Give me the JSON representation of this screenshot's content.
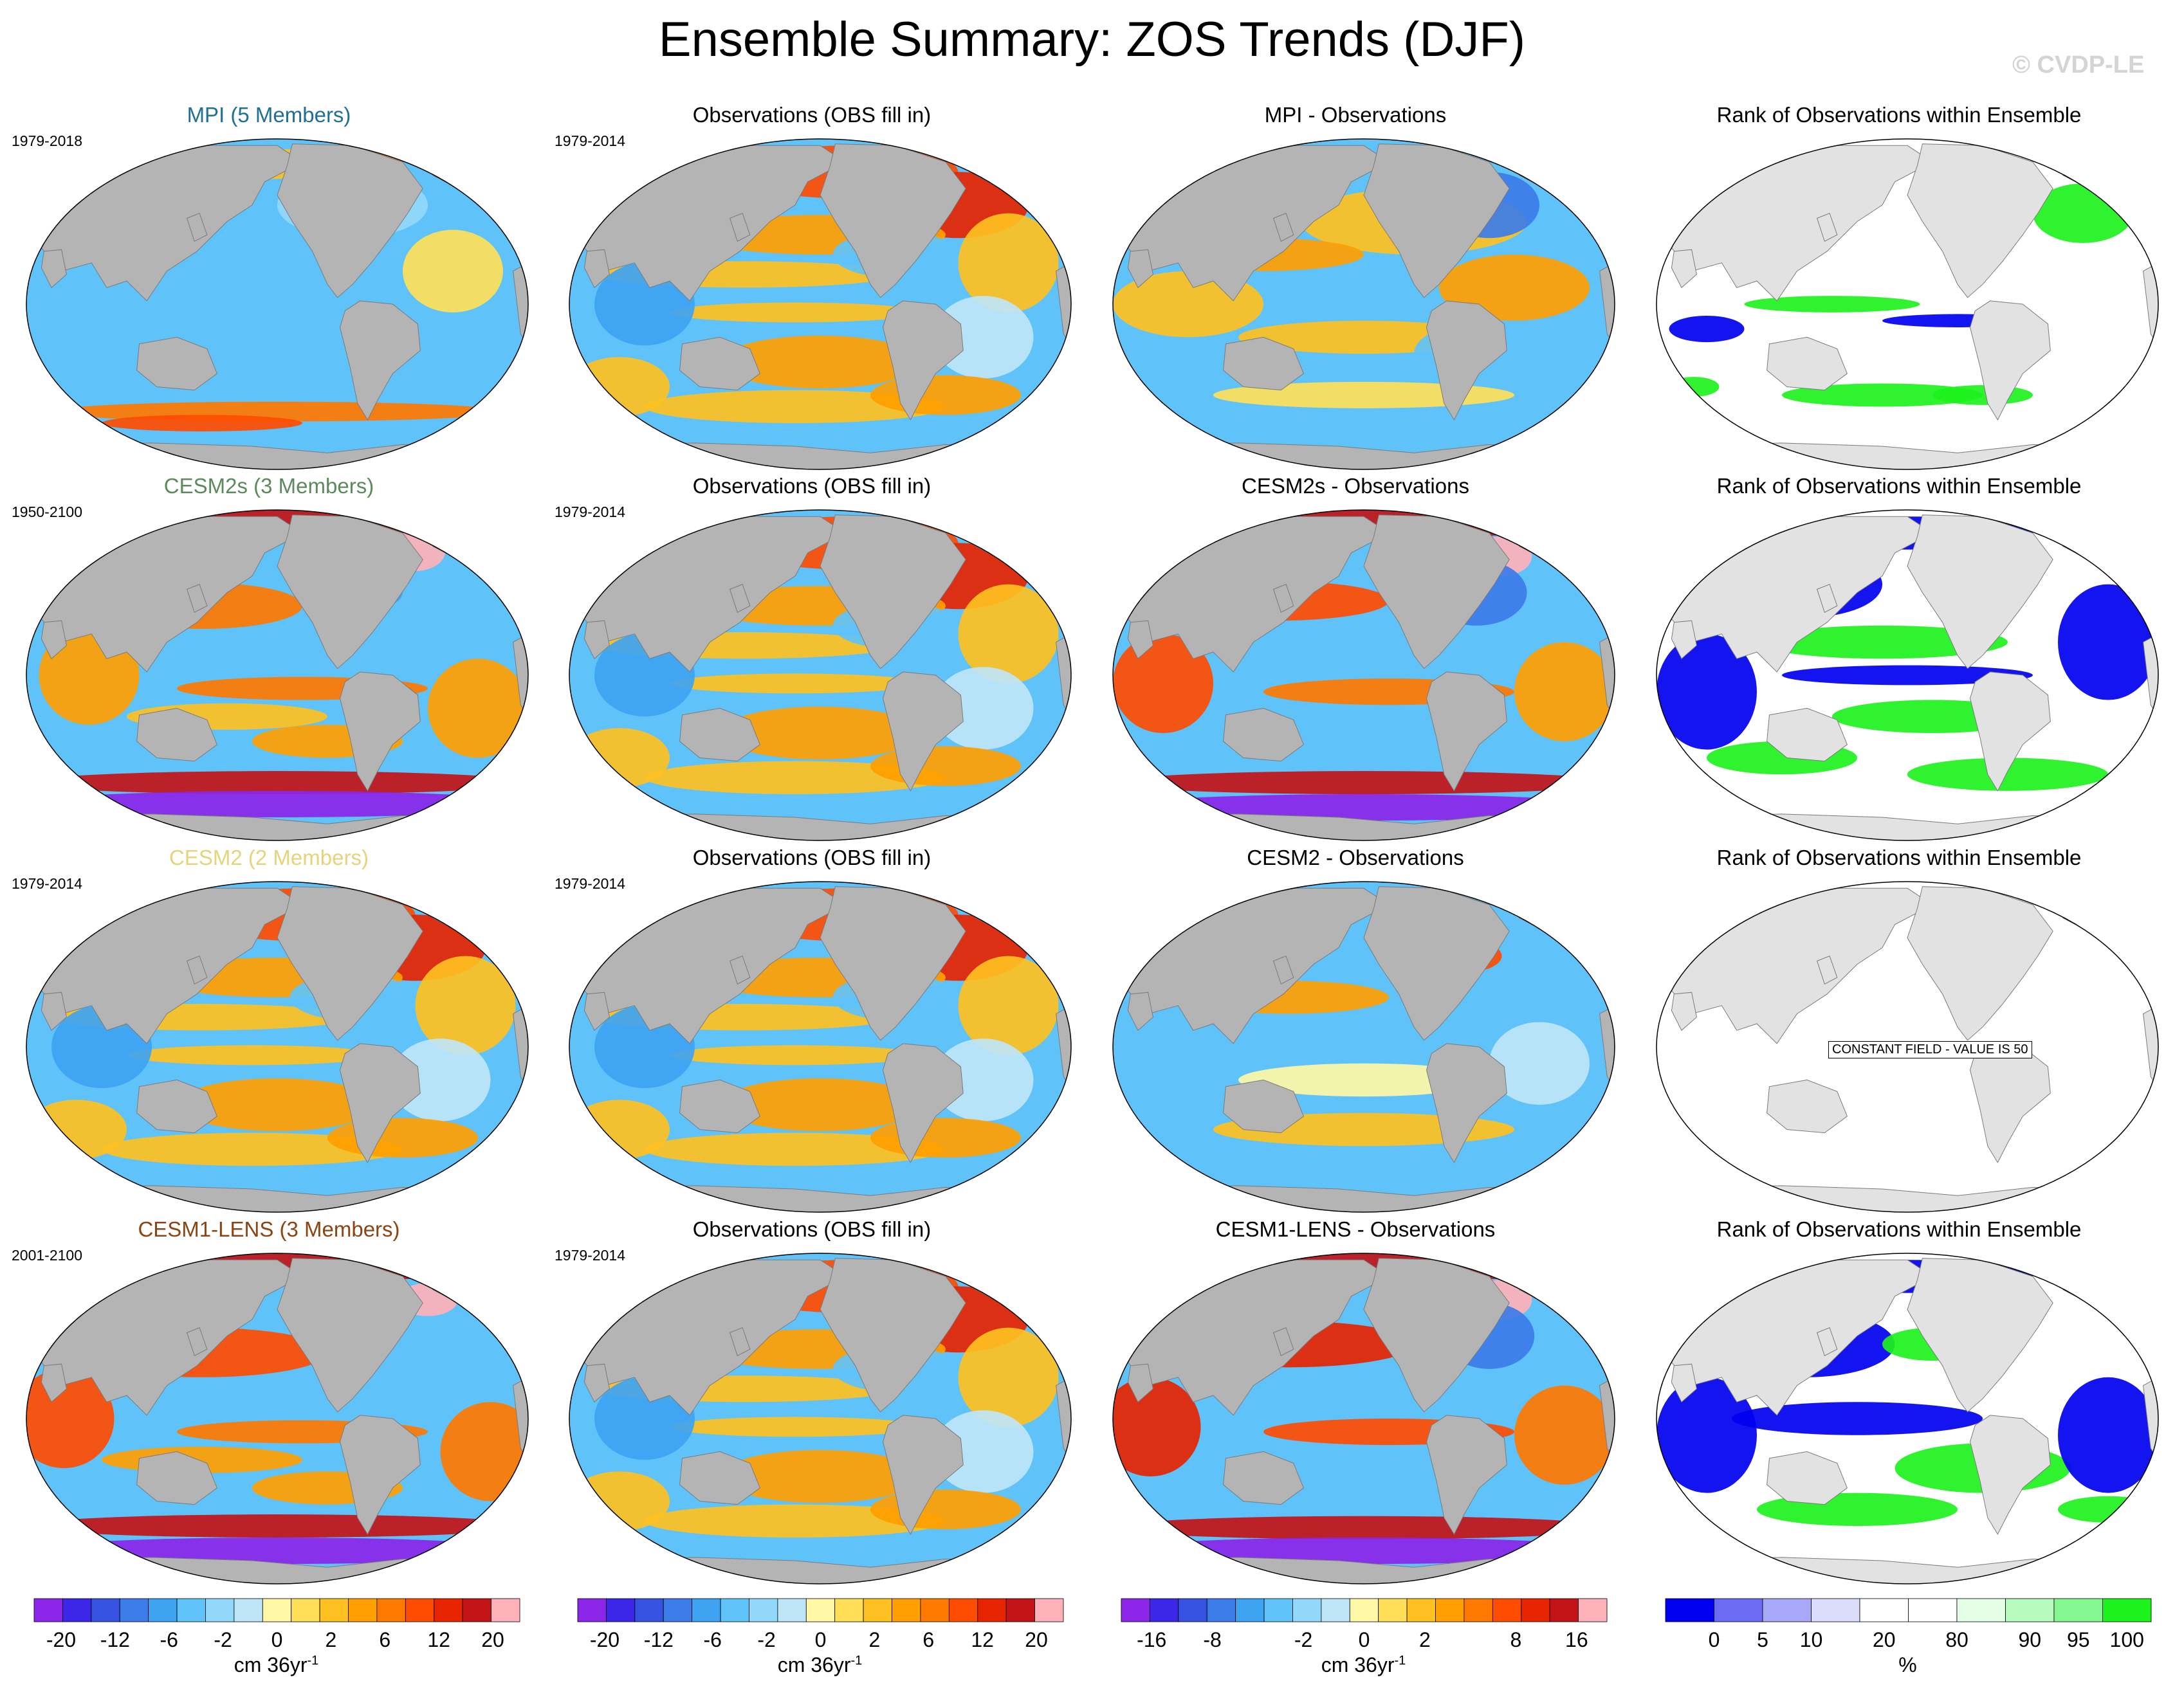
{
  "title": "Ensemble Summary: ZOS Trends (DJF)",
  "watermark": "© CVDP-LE",
  "colors": {
    "land": "#b4b4b4",
    "ice_land": "#e2e2e2",
    "diverging": [
      "#8b25e8",
      "#3c27e8",
      "#3552e0",
      "#3c7ce8",
      "#3ea4f2",
      "#5fc3fa",
      "#92d8fa",
      "#bfe6f7",
      "#fff8a6",
      "#ffdf58",
      "#ffc121",
      "#ffa000",
      "#ff7800",
      "#ff4c00",
      "#e62400",
      "#c21416",
      "#ffb1b9"
    ],
    "rank": [
      "#0000f0",
      "#6b6bf5",
      "#a8a8f8",
      "#dcdcfb",
      "#ffffff",
      "#ffffff",
      "#e3ffe6",
      "#b8fbbe",
      "#86f690",
      "#1cf21c"
    ]
  },
  "rows": [
    {
      "model": "MPI (5 Members)",
      "model_color": "#1f6f96",
      "period": "1979-2018",
      "obs_title": "Observations (OBS fill in)",
      "obs_period": "1979-2014",
      "diff_title": "MPI - Observations",
      "rank_title": "Rank of Observations within Ensemble",
      "model_style": "mpi",
      "diff_style": "mpi_diff",
      "rank_style": "rank_mixed"
    },
    {
      "model": "CESM2s (3 Members)",
      "model_color": "#5c8a5c",
      "period": "1950-2100",
      "obs_title": "Observations (OBS fill in)",
      "obs_period": "1979-2014",
      "diff_title": "CESM2s - Observations",
      "rank_title": "Rank of Observations within Ensemble",
      "model_style": "future",
      "diff_style": "future_diff",
      "rank_style": "rank_blue"
    },
    {
      "model": "CESM2 (2 Members)",
      "model_color": "#e6d37a",
      "period": "1979-2014",
      "obs_title": "Observations (OBS fill in)",
      "obs_period": "1979-2014",
      "diff_title": "CESM2 - Observations",
      "rank_title": "Rank of Observations within Ensemble",
      "model_style": "obs",
      "diff_style": "small_diff",
      "rank_style": "rank_constant",
      "constant_label": "CONSTANT FIELD - VALUE IS 50"
    },
    {
      "model": "CESM1-LENS (3 Members)",
      "model_color": "#8b4513",
      "period": "2001-2100",
      "obs_title": "Observations (OBS fill in)",
      "obs_period": "1979-2014",
      "diff_title": "CESM1-LENS - Observations",
      "rank_title": "Rank of Observations within Ensemble",
      "model_style": "future_strong",
      "diff_style": "future_diff_strong",
      "rank_style": "rank_blue2"
    }
  ],
  "chart_data": [
    {
      "type": "heatmap",
      "name": "model-and-obs-colorbar",
      "levels": [
        -24,
        -20,
        -16,
        -12,
        -9,
        -6,
        -4,
        -2,
        -1,
        0,
        1,
        2,
        4,
        6,
        9,
        12,
        16,
        20,
        24
      ],
      "tick_labels": [
        "-20",
        "-12",
        "-6",
        "-2",
        "0",
        "2",
        "6",
        "12",
        "20"
      ],
      "unit": "cm 36yr",
      "unit_sup": "-1"
    },
    {
      "type": "heatmap",
      "name": "difference-colorbar",
      "levels": [
        -20,
        -16,
        -12,
        -8,
        -6,
        -4,
        -2,
        -1,
        0,
        1,
        2,
        4,
        6,
        8,
        12,
        16,
        20
      ],
      "tick_labels": [
        "-16",
        "-8",
        "-2",
        "0",
        "2",
        "8",
        "16"
      ],
      "unit": "cm 36yr",
      "unit_sup": "-1"
    },
    {
      "type": "heatmap",
      "name": "rank-colorbar",
      "levels": [
        0,
        5,
        10,
        20,
        80,
        90,
        95,
        100
      ],
      "tick_labels": [
        "0",
        "5",
        "10",
        "20",
        "80",
        "90",
        "95",
        "100"
      ],
      "unit": "%"
    }
  ]
}
